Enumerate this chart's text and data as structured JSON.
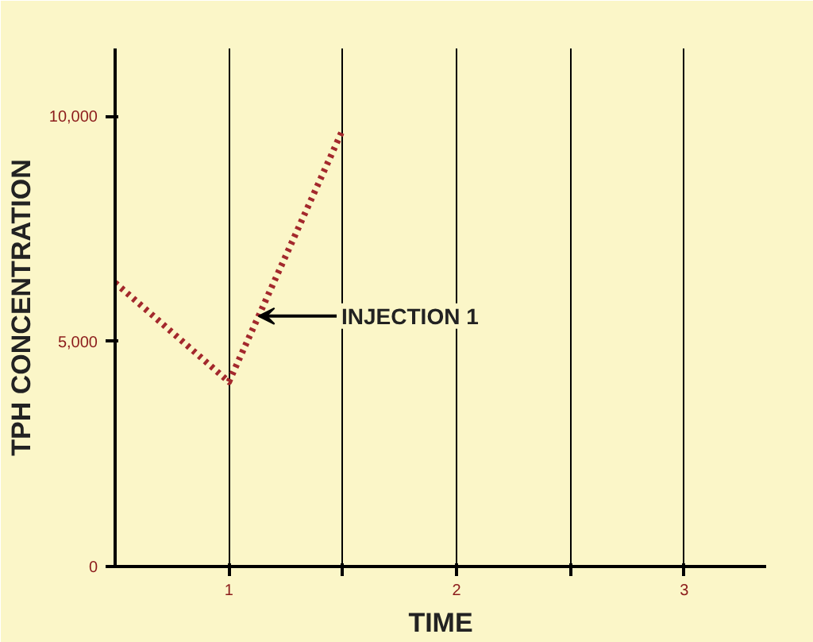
{
  "chart_data": {
    "type": "line",
    "xlabel": "TIME",
    "ylabel": "TPH CONCENTRATION",
    "x": [
      0.5,
      1,
      1.5
    ],
    "series": [
      {
        "color": "#a3282c",
        "values": [
          6300,
          4100,
          9700
        ]
      }
    ],
    "line_style": "dotted",
    "marker": "none",
    "grid": "x",
    "xlim": [
      0.5,
      3.36
    ],
    "ylim": [
      0,
      11500
    ],
    "xticks": [
      {
        "value": 1,
        "label": "1"
      },
      {
        "value": 1.5,
        "label": null
      },
      {
        "value": 2,
        "label": "2"
      },
      {
        "value": 2.5,
        "label": null
      },
      {
        "value": 3,
        "label": "3"
      }
    ],
    "yticks": [
      {
        "value": 0,
        "label": "0"
      },
      {
        "value": 5000,
        "label": "5,000"
      },
      {
        "value": 10000,
        "label": "10,000"
      }
    ],
    "annotations": [
      {
        "text": "INJECTION 1",
        "x": 1.13,
        "y": 5560
      }
    ]
  }
}
